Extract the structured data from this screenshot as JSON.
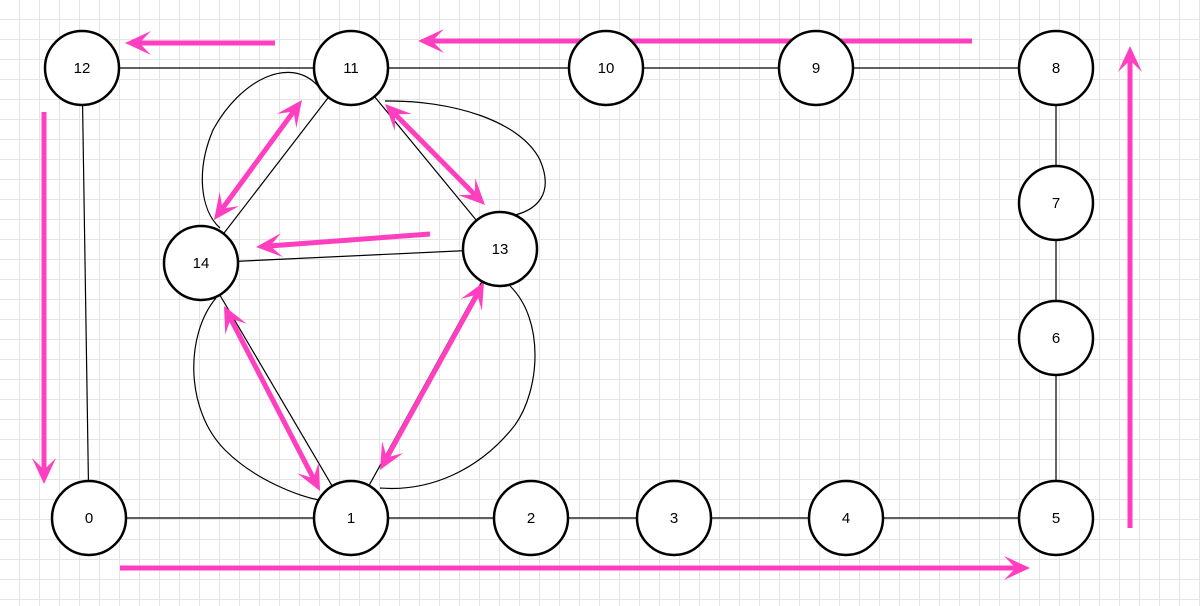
{
  "colors": {
    "accent": "#ff3fbf",
    "stroke": "#000000",
    "background": "#ffffff",
    "grid": "#e4e4e4"
  },
  "nodes": [
    {
      "id": "0",
      "label": "0"
    },
    {
      "id": "1",
      "label": "1"
    },
    {
      "id": "2",
      "label": "2"
    },
    {
      "id": "3",
      "label": "3"
    },
    {
      "id": "4",
      "label": "4"
    },
    {
      "id": "5",
      "label": "5"
    },
    {
      "id": "6",
      "label": "6"
    },
    {
      "id": "7",
      "label": "7"
    },
    {
      "id": "8",
      "label": "8"
    },
    {
      "id": "9",
      "label": "9"
    },
    {
      "id": "10",
      "label": "10"
    },
    {
      "id": "11",
      "label": "11"
    },
    {
      "id": "12",
      "label": "12"
    },
    {
      "id": "13",
      "label": "13"
    },
    {
      "id": "14",
      "label": "14"
    }
  ],
  "edges": [
    [
      "0",
      "1"
    ],
    [
      "1",
      "2"
    ],
    [
      "2",
      "3"
    ],
    [
      "3",
      "4"
    ],
    [
      "4",
      "5"
    ],
    [
      "5",
      "6"
    ],
    [
      "6",
      "7"
    ],
    [
      "7",
      "8"
    ],
    [
      "8",
      "9"
    ],
    [
      "9",
      "10"
    ],
    [
      "10",
      "11"
    ],
    [
      "11",
      "12"
    ],
    [
      "12",
      "0"
    ],
    [
      "11",
      "14"
    ],
    [
      "11",
      "13"
    ],
    [
      "13",
      "14"
    ],
    [
      "14",
      "1"
    ],
    [
      "13",
      "1"
    ]
  ],
  "loops": [
    {
      "between": [
        "11",
        "14"
      ]
    },
    {
      "between": [
        "11",
        "13"
      ]
    },
    {
      "between": [
        "14",
        "1"
      ]
    },
    {
      "between": [
        "13",
        "1"
      ]
    }
  ],
  "arrows": [
    {
      "id": "bottom-right",
      "type": "single"
    },
    {
      "id": "right-up",
      "type": "single"
    },
    {
      "id": "top-left-long",
      "type": "single"
    },
    {
      "id": "top-left-short",
      "type": "single"
    },
    {
      "id": "left-down",
      "type": "single"
    },
    {
      "id": "center-left",
      "type": "single"
    },
    {
      "id": "n11-n14",
      "type": "double"
    },
    {
      "id": "n11-n13",
      "type": "double"
    },
    {
      "id": "n14-n1",
      "type": "double"
    },
    {
      "id": "n13-n1",
      "type": "double"
    }
  ]
}
